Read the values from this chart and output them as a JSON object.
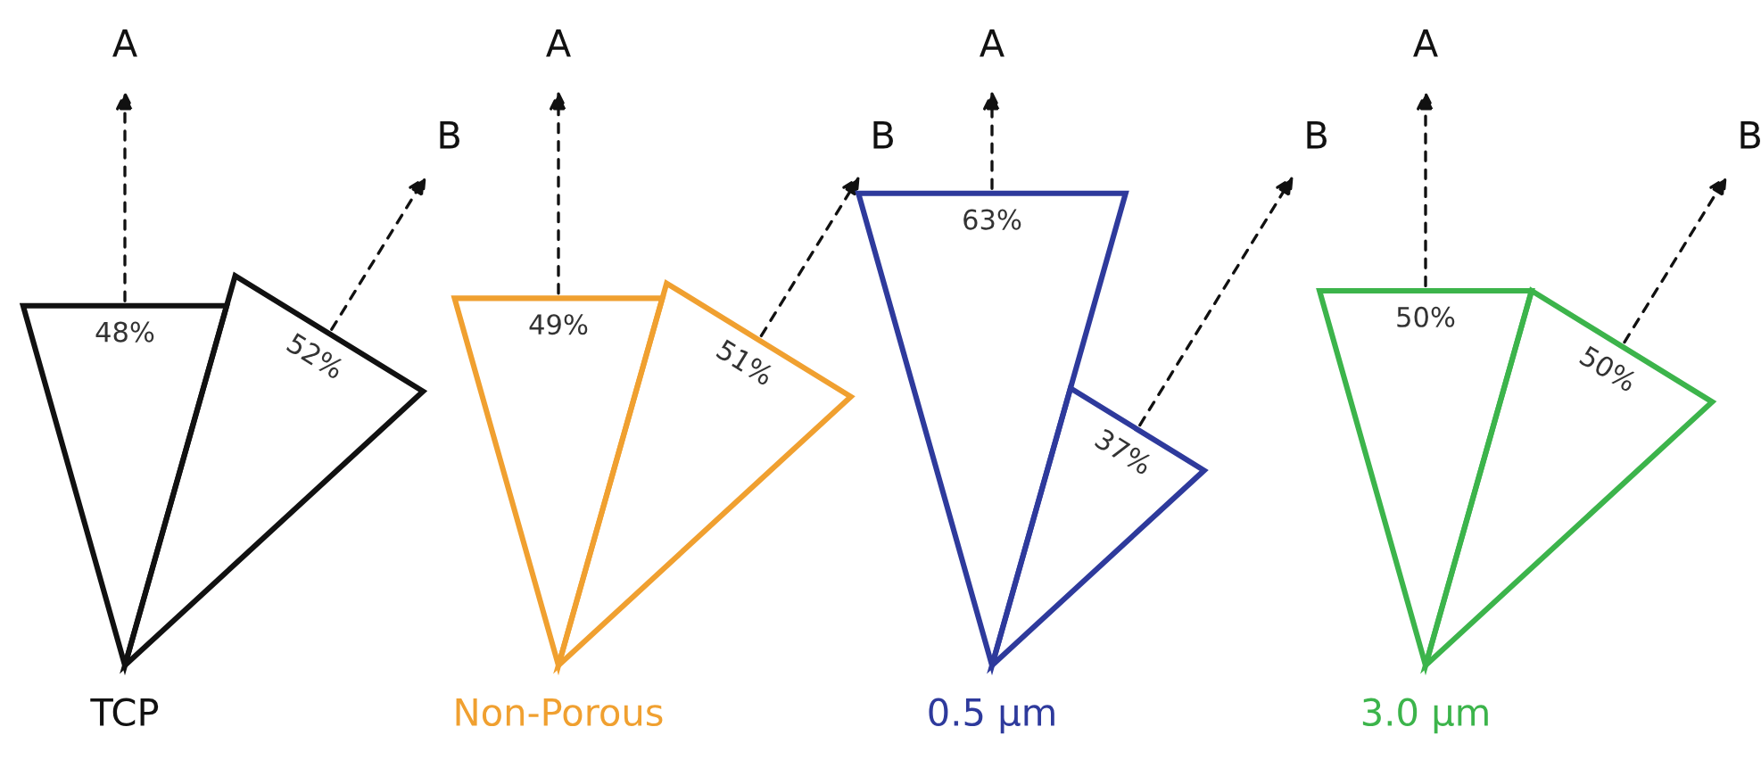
{
  "chart_data": [
    {
      "type": "other",
      "title": "TCP",
      "categories": [
        "A",
        "B"
      ],
      "series": [
        {
          "color": "#111111",
          "values": [
            48,
            52
          ],
          "value_labels": [
            "48%",
            "52%"
          ]
        }
      ]
    },
    {
      "type": "other",
      "title": "Non-Porous",
      "categories": [
        "A",
        "B"
      ],
      "series": [
        {
          "color": "#f0a030",
          "values": [
            49,
            51
          ],
          "value_labels": [
            "49%",
            "51%"
          ]
        }
      ]
    },
    {
      "type": "other",
      "title": "0.5 µm",
      "categories": [
        "A",
        "B"
      ],
      "series": [
        {
          "color": "#2e3a9c",
          "values": [
            63,
            37
          ],
          "value_labels": [
            "63%",
            "37%"
          ]
        }
      ]
    },
    {
      "type": "other",
      "title": "3.0 µm",
      "categories": [
        "A",
        "B"
      ],
      "series": [
        {
          "color": "#3cb44b",
          "values": [
            50,
            50
          ],
          "value_labels": [
            "50%",
            "50%"
          ]
        }
      ]
    }
  ]
}
